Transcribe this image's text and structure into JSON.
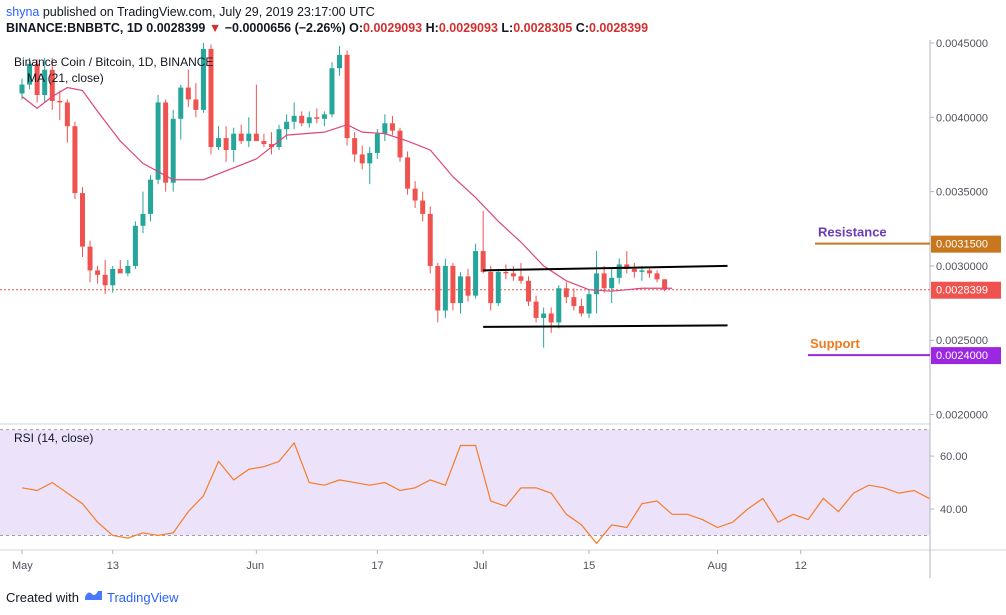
{
  "header": {
    "author": "shyna",
    "published_text": "published on TradingView.com, July 29, 2019 23:17:00 UTC",
    "symbol": "BINANCE:BNBBTC, 1D",
    "last": "0.0028399",
    "change": "−0.0000656 (−2.26%)",
    "ohlc": [
      {
        "k": "O:",
        "v": "0.0029093"
      },
      {
        "k": "H:",
        "v": "0.0029093"
      },
      {
        "k": "L:",
        "v": "0.0028305"
      },
      {
        "k": "C:",
        "v": "0.0028399"
      }
    ]
  },
  "footer": {
    "created_with": "Created with",
    "brand": "TradingView"
  },
  "colors": {
    "up": "#26a69a",
    "down": "#ef5350",
    "ma": "#e0457b",
    "rsi": "#f57c2a",
    "rsi_band": "#ece3fb",
    "resistance_label": "#6a3bb8",
    "resistance_line": "#c8771e",
    "support_label": "#f07a1e",
    "support_line": "#9c27e0"
  },
  "chart_data": [
    {
      "type": "candlestick",
      "title": "Binance Coin / Bitcoin, 1D, BINANCE",
      "indicator_label": "MA (21, close)",
      "x_tick_labels": [
        "May",
        "13",
        "Jun",
        "17",
        "Jul",
        "15",
        "Aug",
        "12"
      ],
      "y_tick_labels": [
        "0.0045000",
        "0.0040000",
        "0.0035000",
        "0.0030000",
        "0.0025000",
        "0.0020000"
      ],
      "ylim": [
        0.00195,
        0.00452
      ],
      "ticks": [
        0.0045,
        0.004,
        0.0035,
        0.003,
        0.0025,
        0.002
      ],
      "last_price": "0.0028399",
      "last_value": 0.0028399,
      "x_ticks": [
        {
          "label": "May",
          "day": 0
        },
        {
          "label": "13",
          "day": 12
        },
        {
          "label": "Jun",
          "day": 31
        },
        {
          "label": "17",
          "day": 47
        },
        {
          "label": "Jul",
          "day": 61
        },
        {
          "label": "15",
          "day": 75
        },
        {
          "label": "Aug",
          "day": 92
        },
        {
          "label": "12",
          "day": 103
        }
      ],
      "candles": [
        [
          0.00416,
          0.00426,
          0.00412,
          0.00422
        ],
        [
          0.00422,
          0.0044,
          0.00419,
          0.00436
        ],
        [
          0.00436,
          0.00439,
          0.0041,
          0.00415
        ],
        [
          0.00415,
          0.0044,
          0.0041,
          0.00432
        ],
        [
          0.00432,
          0.0044,
          0.00405,
          0.00411
        ],
        [
          0.00411,
          0.00418,
          0.00398,
          0.0041
        ],
        [
          0.0041,
          0.00412,
          0.00383,
          0.00394
        ],
        [
          0.00394,
          0.00397,
          0.00345,
          0.00349
        ],
        [
          0.00349,
          0.00353,
          0.00306,
          0.00313
        ],
        [
          0.00313,
          0.00317,
          0.00289,
          0.00297
        ],
        [
          0.00297,
          0.003,
          0.00288,
          0.00294
        ],
        [
          0.00294,
          0.00304,
          0.00281,
          0.00287
        ],
        [
          0.00287,
          0.003,
          0.00282,
          0.00298
        ],
        [
          0.00298,
          0.00304,
          0.00295,
          0.00295
        ],
        [
          0.00295,
          0.00304,
          0.00293,
          0.003
        ],
        [
          0.003,
          0.0033,
          0.00298,
          0.00327
        ],
        [
          0.00327,
          0.0035,
          0.00322,
          0.00335
        ],
        [
          0.00335,
          0.00361,
          0.0033,
          0.00358
        ],
        [
          0.00358,
          0.00415,
          0.00355,
          0.0041
        ],
        [
          0.0041,
          0.00412,
          0.0035,
          0.00356
        ],
        [
          0.00356,
          0.00405,
          0.0035,
          0.00399
        ],
        [
          0.00399,
          0.00422,
          0.00385,
          0.0042
        ],
        [
          0.0042,
          0.00432,
          0.00407,
          0.00412
        ],
        [
          0.00412,
          0.00423,
          0.004,
          0.00405
        ],
        [
          0.00405,
          0.0045,
          0.00403,
          0.00446
        ],
        [
          0.00446,
          0.00449,
          0.00375,
          0.0038
        ],
        [
          0.0038,
          0.00394,
          0.00378,
          0.00386
        ],
        [
          0.00386,
          0.00394,
          0.0037,
          0.00378
        ],
        [
          0.00378,
          0.00393,
          0.0037,
          0.00389
        ],
        [
          0.00389,
          0.00395,
          0.00382,
          0.00384
        ],
        [
          0.00384,
          0.004,
          0.0038,
          0.00389
        ],
        [
          0.00389,
          0.00422,
          0.00385,
          0.00384
        ],
        [
          0.00384,
          0.00389,
          0.0038,
          0.00382
        ],
        [
          0.00382,
          0.0039,
          0.00375,
          0.0038
        ],
        [
          0.0038,
          0.00395,
          0.00378,
          0.00392
        ],
        [
          0.00392,
          0.00402,
          0.00385,
          0.00397
        ],
        [
          0.00397,
          0.0041,
          0.00392,
          0.00401
        ],
        [
          0.00401,
          0.00404,
          0.00394,
          0.00396
        ],
        [
          0.00396,
          0.00404,
          0.00393,
          0.004
        ],
        [
          0.004,
          0.00406,
          0.00396,
          0.00399
        ],
        [
          0.00399,
          0.00404,
          0.00394,
          0.00402
        ],
        [
          0.00402,
          0.00437,
          0.004,
          0.00433
        ],
        [
          0.00433,
          0.00448,
          0.00428,
          0.00442
        ],
        [
          0.00442,
          0.00445,
          0.00381,
          0.00386
        ],
        [
          0.00386,
          0.0039,
          0.0037,
          0.00375
        ],
        [
          0.00375,
          0.00381,
          0.00365,
          0.00369
        ],
        [
          0.00369,
          0.0038,
          0.00355,
          0.00376
        ],
        [
          0.00376,
          0.00392,
          0.00372,
          0.00389
        ],
        [
          0.00389,
          0.00402,
          0.00384,
          0.00396
        ],
        [
          0.00396,
          0.00401,
          0.00388,
          0.00391
        ],
        [
          0.00391,
          0.00393,
          0.0037,
          0.00373
        ],
        [
          0.00373,
          0.00377,
          0.00348,
          0.00352
        ],
        [
          0.00352,
          0.00357,
          0.00339,
          0.00344
        ],
        [
          0.00344,
          0.0035,
          0.0033,
          0.00335
        ],
        [
          0.00335,
          0.0034,
          0.00295,
          0.003
        ],
        [
          0.003,
          0.00302,
          0.00262,
          0.0027
        ],
        [
          0.0027,
          0.00305,
          0.00265,
          0.003
        ],
        [
          0.003,
          0.00302,
          0.0027,
          0.00275
        ],
        [
          0.00275,
          0.00296,
          0.00268,
          0.00293
        ],
        [
          0.00293,
          0.00298,
          0.00276,
          0.0028
        ],
        [
          0.0028,
          0.00315,
          0.00278,
          0.0031
        ],
        [
          0.0031,
          0.00337,
          0.00295,
          0.00296
        ],
        [
          0.00296,
          0.003,
          0.0027,
          0.00275
        ],
        [
          0.00275,
          0.00298,
          0.00273,
          0.00296
        ],
        [
          0.00296,
          0.00301,
          0.00291,
          0.00295
        ],
        [
          0.00295,
          0.003,
          0.0029,
          0.00293
        ],
        [
          0.00293,
          0.00302,
          0.00288,
          0.0029
        ],
        [
          0.0029,
          0.00293,
          0.00273,
          0.00276
        ],
        [
          0.00276,
          0.0028,
          0.00262,
          0.00265
        ],
        [
          0.00265,
          0.00272,
          0.00245,
          0.00268
        ],
        [
          0.00268,
          0.00272,
          0.00255,
          0.00262
        ],
        [
          0.00262,
          0.00287,
          0.00258,
          0.00285
        ],
        [
          0.00285,
          0.00289,
          0.00275,
          0.00279
        ],
        [
          0.00279,
          0.00285,
          0.0027,
          0.00273
        ],
        [
          0.00273,
          0.00278,
          0.00266,
          0.00268
        ],
        [
          0.00268,
          0.00284,
          0.00265,
          0.00281
        ],
        [
          0.00281,
          0.0031,
          0.00268,
          0.00295
        ],
        [
          0.00295,
          0.003,
          0.00282,
          0.00285
        ],
        [
          0.00285,
          0.00298,
          0.00275,
          0.00292
        ],
        [
          0.00292,
          0.00305,
          0.00288,
          0.00301
        ],
        [
          0.00301,
          0.0031,
          0.00295,
          0.00298
        ],
        [
          0.00298,
          0.00302,
          0.00292,
          0.00296
        ],
        [
          0.00296,
          0.003,
          0.0029,
          0.00297
        ],
        [
          0.00297,
          0.00299,
          0.00292,
          0.00295
        ],
        [
          0.00295,
          0.00297,
          0.00289,
          0.00291
        ],
        [
          0.00291,
          0.00291,
          0.00283,
          0.00284
        ]
      ],
      "ma21": [
        [
          0,
          0.00414
        ],
        [
          2,
          0.00406
        ],
        [
          4,
          0.00414
        ],
        [
          6,
          0.0042
        ],
        [
          8,
          0.00418
        ],
        [
          10,
          0.00404
        ],
        [
          13,
          0.00384
        ],
        [
          16,
          0.00369
        ],
        [
          20,
          0.00358
        ],
        [
          24,
          0.00358
        ],
        [
          27,
          0.00364
        ],
        [
          31,
          0.00372
        ],
        [
          35,
          0.00388
        ],
        [
          40,
          0.0039
        ],
        [
          43,
          0.00395
        ],
        [
          45,
          0.0039
        ],
        [
          48,
          0.00389
        ],
        [
          51,
          0.00384
        ],
        [
          54,
          0.00378
        ],
        [
          57,
          0.0036
        ],
        [
          60,
          0.00346
        ],
        [
          63,
          0.0033
        ],
        [
          66,
          0.00316
        ],
        [
          69,
          0.003
        ],
        [
          72,
          0.0029
        ],
        [
          75,
          0.00284
        ],
        [
          78,
          0.00283
        ],
        [
          80,
          0.00284
        ],
        [
          82,
          0.00285
        ],
        [
          84,
          0.00285
        ],
        [
          86,
          0.00285
        ]
      ],
      "trendlines": [
        {
          "from": [
            61,
            0.00297
          ],
          "to": [
            92,
            0.003
          ]
        },
        {
          "from": [
            61,
            0.00259
          ],
          "to": [
            92,
            0.0026
          ]
        }
      ],
      "annotations": [
        {
          "text": "Resistance",
          "value": 0.00315,
          "price_label": "0.0031500"
        },
        {
          "text": "Support",
          "value": 0.0024,
          "price_label": "0.0024000"
        }
      ]
    },
    {
      "type": "line",
      "title": "RSI (14, close)",
      "y_tick_labels": [
        "60.00",
        "40.00"
      ],
      "ticks": [
        60,
        40
      ],
      "ylim": [
        24.5,
        71
      ],
      "band": [
        30,
        70
      ],
      "rsi": [
        [
          0,
          48
        ],
        [
          2,
          47
        ],
        [
          4,
          50
        ],
        [
          6,
          46
        ],
        [
          8,
          42
        ],
        [
          10,
          35
        ],
        [
          12,
          30
        ],
        [
          14,
          29
        ],
        [
          16,
          31
        ],
        [
          18,
          30
        ],
        [
          20,
          31
        ],
        [
          22,
          39
        ],
        [
          24,
          45
        ],
        [
          26,
          58
        ],
        [
          28,
          51
        ],
        [
          30,
          55
        ],
        [
          32,
          56
        ],
        [
          34,
          58
        ],
        [
          36,
          65
        ],
        [
          38,
          50
        ],
        [
          40,
          49
        ],
        [
          42,
          51
        ],
        [
          44,
          50
        ],
        [
          46,
          49
        ],
        [
          48,
          50
        ],
        [
          50,
          47
        ],
        [
          52,
          48
        ],
        [
          54,
          51
        ],
        [
          56,
          49
        ],
        [
          58,
          64
        ],
        [
          60,
          64
        ],
        [
          62,
          43
        ],
        [
          64,
          41
        ],
        [
          66,
          48
        ],
        [
          68,
          48
        ],
        [
          70,
          46
        ],
        [
          72,
          38
        ],
        [
          74,
          34
        ],
        [
          76,
          27
        ],
        [
          78,
          34
        ],
        [
          80,
          33
        ],
        [
          82,
          42
        ],
        [
          84,
          43
        ],
        [
          86,
          38
        ],
        [
          88,
          38
        ],
        [
          90,
          36
        ],
        [
          92,
          33
        ],
        [
          94,
          35
        ],
        [
          96,
          40
        ],
        [
          98,
          44
        ],
        [
          100,
          35
        ],
        [
          102,
          38
        ],
        [
          104,
          36
        ],
        [
          106,
          44
        ],
        [
          108,
          39
        ],
        [
          110,
          46
        ],
        [
          112,
          49
        ],
        [
          114,
          48
        ],
        [
          116,
          46
        ],
        [
          118,
          47
        ],
        [
          120,
          44
        ]
      ]
    }
  ]
}
